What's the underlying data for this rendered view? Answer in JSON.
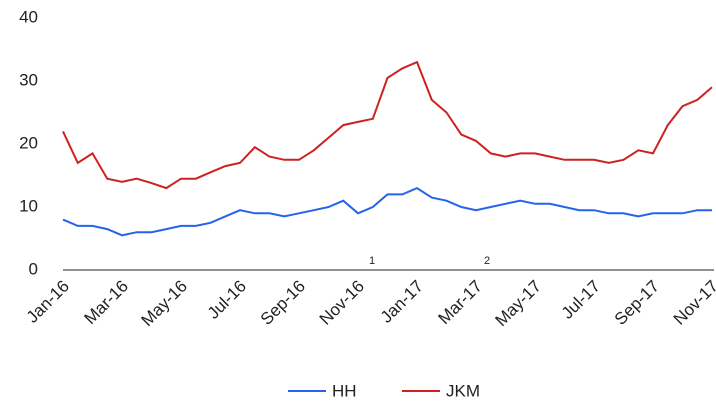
{
  "chart_data": {
    "type": "line",
    "categories": [
      "Jan-16",
      null,
      null,
      null,
      "Mar-16",
      null,
      null,
      null,
      "May-16",
      null,
      null,
      null,
      "Jul-16",
      null,
      null,
      null,
      "Sep-16",
      null,
      null,
      null,
      "Nov-16",
      null,
      null,
      null,
      "Jan-17",
      null,
      null,
      null,
      "Mar-17",
      null,
      null,
      null,
      "May-17",
      null,
      null,
      null,
      "Jul-17",
      null,
      null,
      null,
      "Sep-17",
      null,
      null,
      null,
      "Nov-17"
    ],
    "series": [
      {
        "name": "HH",
        "color": "#2563eb",
        "values": [
          8,
          7,
          7,
          6.5,
          5.5,
          6,
          6,
          6.5,
          7,
          7,
          7.5,
          8.5,
          9.5,
          9,
          9,
          8.5,
          9,
          9.5,
          10,
          11,
          9,
          10,
          12,
          12,
          13,
          11.5,
          11,
          10,
          9.5,
          10,
          10.5,
          11,
          10.5,
          10.5,
          10,
          9.5,
          9.5,
          9,
          9,
          8.5,
          9,
          9,
          9,
          9.5,
          9.5
        ]
      },
      {
        "name": "JKM",
        "color": "#cc2222",
        "values": [
          22,
          17,
          18.5,
          14.5,
          14,
          14.5,
          13.8,
          13,
          14.5,
          14.5,
          15.5,
          16.5,
          17,
          19.5,
          18,
          17.5,
          17.5,
          19,
          21,
          23,
          23.5,
          24,
          30.5,
          32,
          33,
          27,
          25,
          21.5,
          20.5,
          18.5,
          18,
          18.5,
          18.5,
          18,
          17.5,
          17.5,
          17.5,
          17,
          17.5,
          19,
          18.5,
          23,
          26,
          27,
          29
        ]
      }
    ],
    "annotations": [
      "1",
      "2"
    ],
    "ylim": [
      0,
      40
    ],
    "yticks": [
      0,
      10,
      20,
      30,
      40
    ],
    "grid": false,
    "legend": "bottom"
  }
}
